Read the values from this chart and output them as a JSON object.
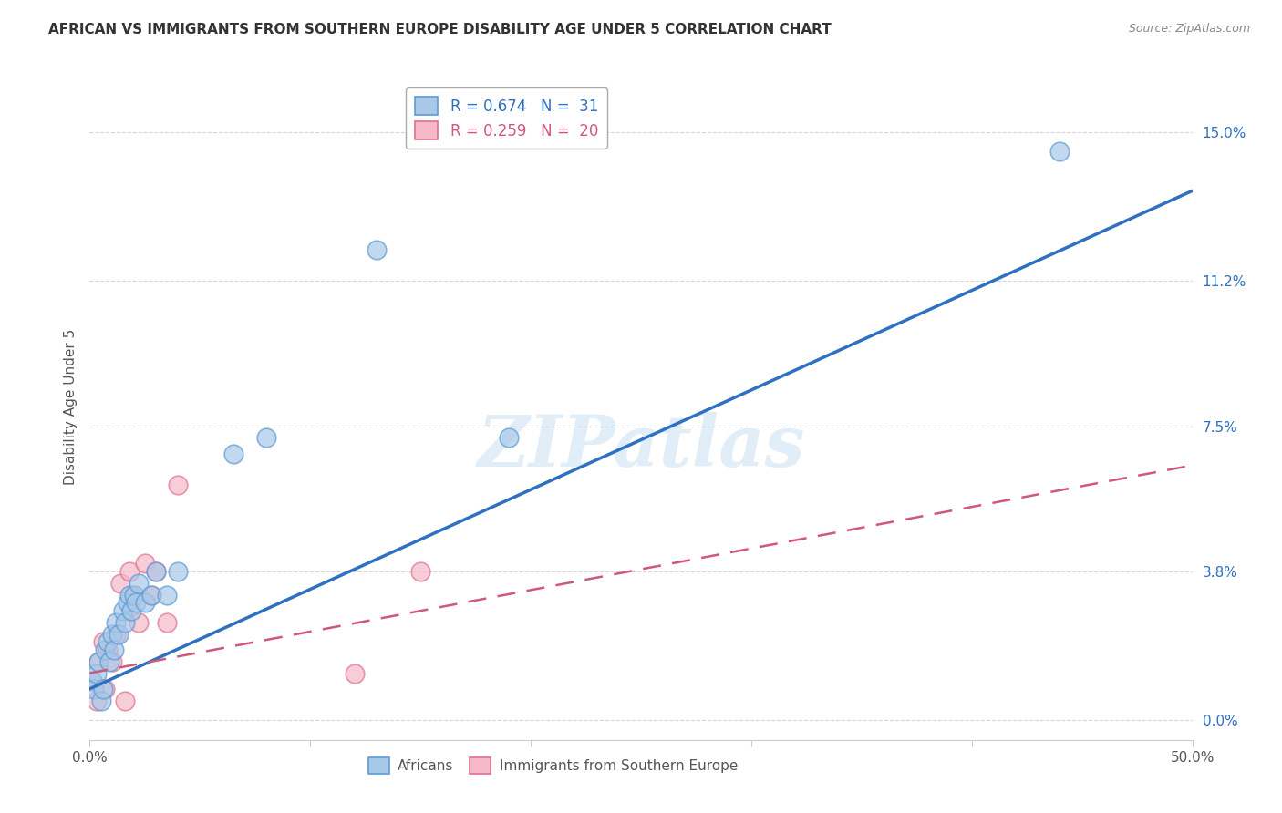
{
  "title": "AFRICAN VS IMMIGRANTS FROM SOUTHERN EUROPE DISABILITY AGE UNDER 5 CORRELATION CHART",
  "source": "Source: ZipAtlas.com",
  "ylabel": "Disability Age Under 5",
  "watermark": "ZIPatlas",
  "xlim": [
    0.0,
    0.5
  ],
  "ylim": [
    -0.005,
    0.165
  ],
  "xtick_values": [
    0.0,
    0.1,
    0.2,
    0.3,
    0.4,
    0.5
  ],
  "xticklabels": [
    "0.0%",
    "",
    "",
    "",
    "",
    "50.0%"
  ],
  "ytick_labels": [
    "0.0%",
    "3.8%",
    "7.5%",
    "11.2%",
    "15.0%"
  ],
  "ytick_values": [
    0.0,
    0.038,
    0.075,
    0.112,
    0.15
  ],
  "african_color": "#A8C8E8",
  "african_edge": "#5B9BD5",
  "southern_color": "#F4B8C8",
  "southern_edge": "#E07090",
  "african_R": 0.674,
  "african_N": 31,
  "southern_R": 0.259,
  "southern_N": 20,
  "african_line_color": "#3070C0",
  "southern_line_color": "#D05878",
  "background_color": "#FFFFFF",
  "grid_color": "#CCCCCC",
  "legend_edge": "#AAAAAA",
  "title_color": "#333333",
  "source_color": "#888888",
  "axis_label_color": "#555555",
  "tick_color_y": "#3070C0",
  "african_line": {
    "x0": 0.0,
    "y0": 0.008,
    "x1": 0.5,
    "y1": 0.135
  },
  "southern_line": {
    "x0": 0.0,
    "y0": 0.012,
    "x1": 0.5,
    "y1": 0.065
  },
  "african_x": [
    0.001,
    0.002,
    0.003,
    0.004,
    0.005,
    0.006,
    0.007,
    0.008,
    0.009,
    0.01,
    0.011,
    0.012,
    0.013,
    0.015,
    0.016,
    0.017,
    0.018,
    0.019,
    0.02,
    0.021,
    0.022,
    0.025,
    0.028,
    0.03,
    0.035,
    0.04,
    0.065,
    0.08,
    0.13,
    0.19,
    0.44
  ],
  "african_y": [
    0.01,
    0.008,
    0.012,
    0.015,
    0.005,
    0.008,
    0.018,
    0.02,
    0.015,
    0.022,
    0.018,
    0.025,
    0.022,
    0.028,
    0.025,
    0.03,
    0.032,
    0.028,
    0.032,
    0.03,
    0.035,
    0.03,
    0.032,
    0.038,
    0.032,
    0.038,
    0.068,
    0.072,
    0.12,
    0.072,
    0.145
  ],
  "southern_x": [
    0.001,
    0.003,
    0.004,
    0.006,
    0.007,
    0.008,
    0.01,
    0.012,
    0.014,
    0.016,
    0.018,
    0.02,
    0.022,
    0.025,
    0.028,
    0.03,
    0.035,
    0.04,
    0.12,
    0.15
  ],
  "southern_y": [
    0.01,
    0.005,
    0.015,
    0.02,
    0.008,
    0.018,
    0.015,
    0.022,
    0.035,
    0.005,
    0.038,
    0.032,
    0.025,
    0.04,
    0.032,
    0.038,
    0.025,
    0.06,
    0.012,
    0.038
  ]
}
